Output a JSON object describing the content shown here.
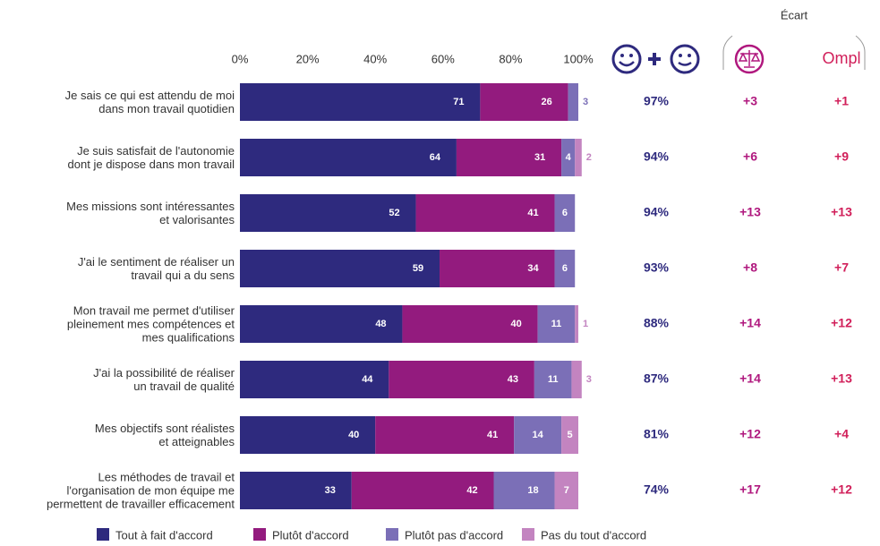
{
  "chart_data": {
    "type": "stacked-bar-horizontal",
    "categories": [
      "Je sais ce qui est attendu de moi\ndans mon travail quotidien",
      "Je suis satisfait de l'autonomie\ndont je dispose dans mon travail",
      "Mes missions sont intéressantes\net valorisantes",
      "J'ai le sentiment de réaliser un\ntravail qui a du sens",
      "Mon travail me permet d'utiliser\npleinement mes compétences et\nmes qualifications",
      "J'ai la possibilité de réaliser\nun travail de qualité",
      "Mes objectifs sont réalistes\net atteignables",
      "Les méthodes de travail et\nl'organisation de mon équipe me\npermettent de travailler efficacement"
    ],
    "series": [
      {
        "name": "Tout à fait d'accord",
        "color": "#2e2a7e",
        "values": [
          71,
          64,
          52,
          59,
          48,
          44,
          40,
          33
        ]
      },
      {
        "name": "Plutôt d'accord",
        "color": "#931b7e",
        "values": [
          26,
          31,
          41,
          34,
          40,
          43,
          41,
          42
        ]
      },
      {
        "name": "Plutôt pas d'accord",
        "color": "#7b6fb7",
        "values": [
          3,
          4,
          6,
          6,
          11,
          11,
          14,
          18
        ]
      },
      {
        "name": "Pas du tout d'accord",
        "color": "#c384c0",
        "values": [
          null,
          2,
          null,
          null,
          1,
          3,
          5,
          7
        ]
      }
    ],
    "xlim": [
      0,
      100
    ],
    "xticks": [
      {
        "value": 0,
        "label": "0%"
      },
      {
        "value": 20,
        "label": "20%"
      },
      {
        "value": 40,
        "label": "40%"
      },
      {
        "value": 60,
        "label": "60%"
      },
      {
        "value": 80,
        "label": "80%"
      },
      {
        "value": 100,
        "label": "100%"
      }
    ],
    "total": {
      "color": "#2e2a7e",
      "values": [
        97,
        94,
        94,
        93,
        88,
        87,
        81,
        74
      ],
      "value_labels": [
        "97%",
        "94%",
        "94%",
        "93%",
        "88%",
        "87%",
        "81%",
        "74%"
      ]
    },
    "ecart_title": "Écart",
    "ecart_columns": [
      {
        "color": "#b0187e",
        "values": [
          3,
          6,
          13,
          8,
          14,
          14,
          12,
          17
        ],
        "value_labels": [
          "+3",
          "+6",
          "+13",
          "+8",
          "+14",
          "+14",
          "+12",
          "+17"
        ]
      },
      {
        "name": "Ompl",
        "color": "#d11f5a",
        "values": [
          1,
          9,
          13,
          7,
          12,
          13,
          4,
          12
        ],
        "value_labels": [
          "+1",
          "+9",
          "+13",
          "+7",
          "+12",
          "+13",
          "+4",
          "+12"
        ]
      }
    ]
  }
}
